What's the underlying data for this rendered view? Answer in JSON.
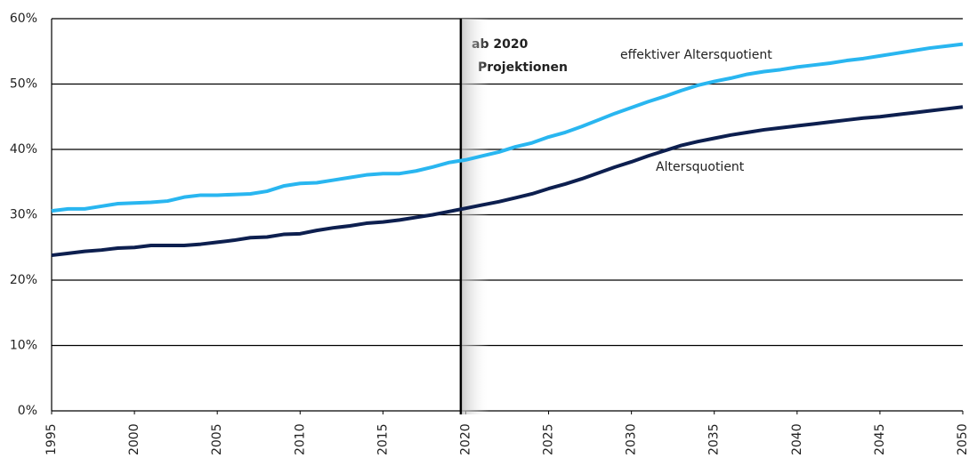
{
  "chart_data": {
    "type": "line",
    "annotations": [
      "ab 2020",
      "Projektionen"
    ],
    "projection_line": 2019.7,
    "x": [
      1995,
      1996,
      1997,
      1998,
      1999,
      2000,
      2001,
      2002,
      2003,
      2004,
      2005,
      2006,
      2007,
      2008,
      2009,
      2010,
      2011,
      2012,
      2013,
      2014,
      2015,
      2016,
      2017,
      2018,
      2019,
      2020,
      2021,
      2022,
      2023,
      2024,
      2025,
      2026,
      2027,
      2028,
      2029,
      2030,
      2031,
      2032,
      2033,
      2034,
      2035,
      2036,
      2037,
      2038,
      2039,
      2040,
      2041,
      2042,
      2043,
      2044,
      2045,
      2046,
      2047,
      2048,
      2049,
      2050
    ],
    "series": [
      {
        "name": "effektiver Altersquotient",
        "color": "#29b6f0",
        "values": [
          30.6,
          30.9,
          30.9,
          31.3,
          31.7,
          31.8,
          31.9,
          32.1,
          32.7,
          33.0,
          33.0,
          33.1,
          33.2,
          33.6,
          34.4,
          34.8,
          34.9,
          35.3,
          35.7,
          36.1,
          36.3,
          36.3,
          36.7,
          37.3,
          38.0,
          38.4,
          39.0,
          39.6,
          40.4,
          41.0,
          41.9,
          42.6,
          43.5,
          44.5,
          45.5,
          46.4,
          47.3,
          48.1,
          49.0,
          49.8,
          50.4,
          50.9,
          51.5,
          51.9,
          52.2,
          52.6,
          52.9,
          53.2,
          53.6,
          53.9,
          54.3,
          54.7,
          55.1,
          55.5,
          55.8,
          56.1
        ]
      },
      {
        "name": "Altersquotient",
        "color": "#0d1f4f",
        "values": [
          23.8,
          24.1,
          24.4,
          24.6,
          24.9,
          25.0,
          25.3,
          25.3,
          25.3,
          25.5,
          25.8,
          26.1,
          26.5,
          26.6,
          27.0,
          27.1,
          27.6,
          28.0,
          28.3,
          28.7,
          28.9,
          29.2,
          29.6,
          30.0,
          30.5,
          31.0,
          31.5,
          32.0,
          32.6,
          33.2,
          34.0,
          34.7,
          35.5,
          36.4,
          37.3,
          38.1,
          39.0,
          39.8,
          40.6,
          41.2,
          41.7,
          42.2,
          42.6,
          43.0,
          43.3,
          43.6,
          43.9,
          44.2,
          44.5,
          44.8,
          45.0,
          45.3,
          45.6,
          45.9,
          46.2,
          46.5
        ]
      }
    ],
    "xlim": [
      1995,
      2050
    ],
    "xticks": [
      1995,
      2000,
      2005,
      2010,
      2015,
      2020,
      2025,
      2030,
      2035,
      2040,
      2045,
      2050
    ],
    "ylim": [
      0,
      60
    ],
    "yticks": [
      {
        "value": 0,
        "label": "0%"
      },
      {
        "value": 10,
        "label": "10%"
      },
      {
        "value": 20,
        "label": "20%"
      },
      {
        "value": 30,
        "label": "30%"
      },
      {
        "value": 40,
        "label": "40%"
      },
      {
        "value": 50,
        "label": "50%"
      },
      {
        "value": 60,
        "label": "60%"
      }
    ],
    "grid": true
  }
}
